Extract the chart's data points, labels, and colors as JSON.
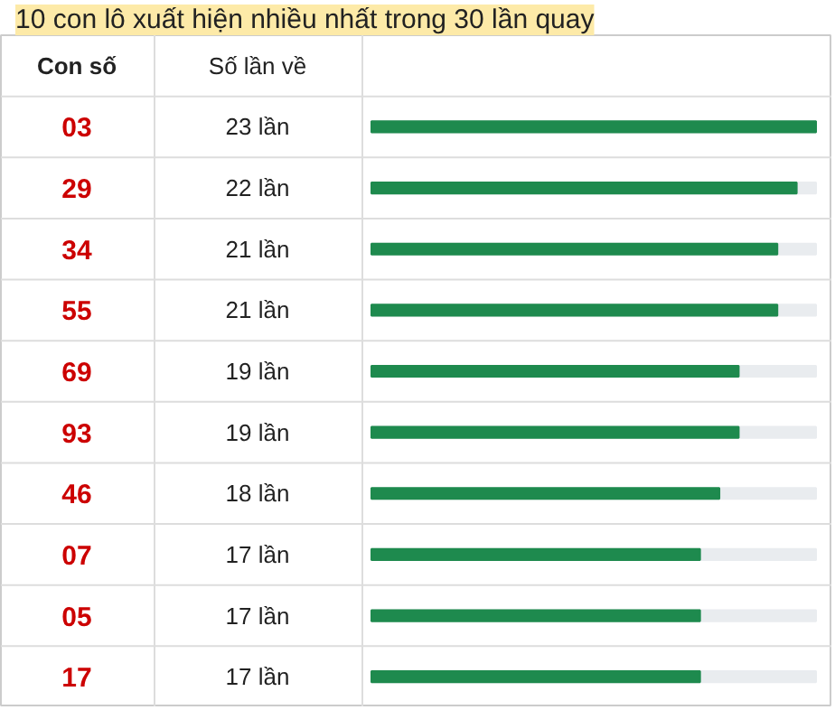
{
  "chart_data": {
    "type": "bar",
    "orientation": "horizontal",
    "title": "10 con lô xuất hiện nhiều nhất trong 30 lần quay",
    "ylabel": "Con số",
    "xlabel": "Số lần về",
    "categories": [
      "03",
      "29",
      "34",
      "55",
      "69",
      "93",
      "46",
      "07",
      "05",
      "17"
    ],
    "values": [
      23,
      22,
      21,
      21,
      19,
      19,
      18,
      17,
      17,
      17
    ],
    "value_labels": [
      "23 lần",
      "22 lần",
      "21 lần",
      "21 lần",
      "19 lần",
      "19 lần",
      "18 lần",
      "17 lần",
      "17 lần",
      "17 lần"
    ],
    "color": "#1e8a4e",
    "xlim": [
      0,
      23
    ],
    "tick_labels": false,
    "grid": false
  }
}
